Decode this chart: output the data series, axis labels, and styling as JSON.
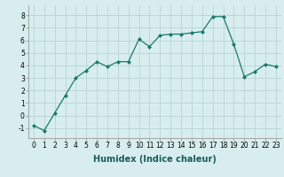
{
  "x": [
    0,
    1,
    2,
    3,
    4,
    5,
    6,
    7,
    8,
    9,
    10,
    11,
    12,
    13,
    14,
    15,
    16,
    17,
    18,
    19,
    20,
    21,
    22,
    23
  ],
  "y": [
    -0.8,
    -1.2,
    0.2,
    1.6,
    3.0,
    3.6,
    4.3,
    3.9,
    4.3,
    4.3,
    6.1,
    5.5,
    6.4,
    6.5,
    6.5,
    6.6,
    6.7,
    7.9,
    7.9,
    5.7,
    3.1,
    3.5,
    4.1,
    3.9
  ],
  "line_color": "#1a7a6a",
  "marker": "D",
  "marker_size": 2,
  "bg_color": "#d8eeee",
  "grid_color": "#b8d4d4",
  "xlabel": "Humidex (Indice chaleur)",
  "ylim": [
    -1.8,
    8.8
  ],
  "xlim": [
    -0.5,
    23.5
  ],
  "yticks": [
    -1,
    0,
    1,
    2,
    3,
    4,
    5,
    6,
    7,
    8
  ],
  "xticks": [
    0,
    1,
    2,
    3,
    4,
    5,
    6,
    7,
    8,
    9,
    10,
    11,
    12,
    13,
    14,
    15,
    16,
    17,
    18,
    19,
    20,
    21,
    22,
    23
  ],
  "tick_fontsize": 5.5,
  "xlabel_fontsize": 7
}
